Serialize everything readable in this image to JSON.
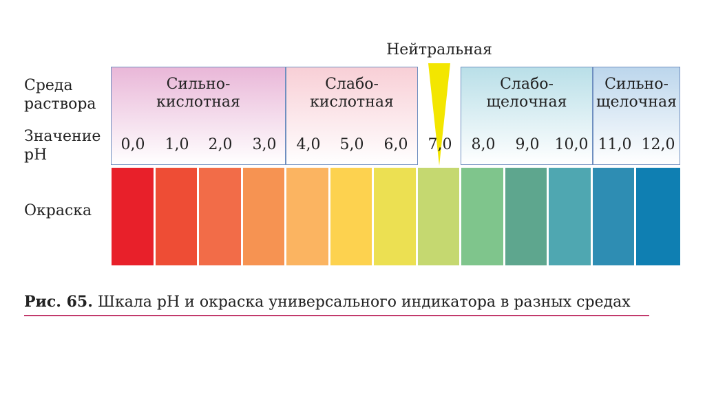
{
  "row_labels": {
    "medium": [
      "Среда",
      "раствора"
    ],
    "ph_value": [
      "Значение",
      "pH"
    ],
    "color": "Окраска"
  },
  "neutral_label": "Нейтральная",
  "sections": [
    {
      "line1": "Сильно-",
      "line2": "кислотная",
      "bg": "#e9b7d8"
    },
    {
      "line1": "Слабо-",
      "line2": "кислотная",
      "bg": "#f8cfd6"
    },
    {
      "line1": "Слабо-",
      "line2": "щелочная",
      "bg": "#b9dfe8"
    },
    {
      "line1": "Сильно-",
      "line2": "щелочная",
      "bg": "#bcd6ec"
    }
  ],
  "ph_values": [
    "0,0",
    "1,0",
    "2,0",
    "3,0",
    "4,0",
    "5,0",
    "6,0",
    "7,0",
    "8,0",
    "9,0",
    "10,0",
    "11,0",
    "12,0"
  ],
  "swatch_colors": [
    "#e8202a",
    "#ee4d35",
    "#f26c48",
    "#f69352",
    "#fbb461",
    "#fdd24f",
    "#ece052",
    "#c5d870",
    "#7fc58c",
    "#5ea68e",
    "#4fa7b1",
    "#2e8db3",
    "#0f7fb2"
  ],
  "neutral_color": "#f3e600",
  "caption": {
    "figure": "Рис. 65.",
    "text": " Шкала pH и окраска универсального индикатора в разных средах"
  }
}
